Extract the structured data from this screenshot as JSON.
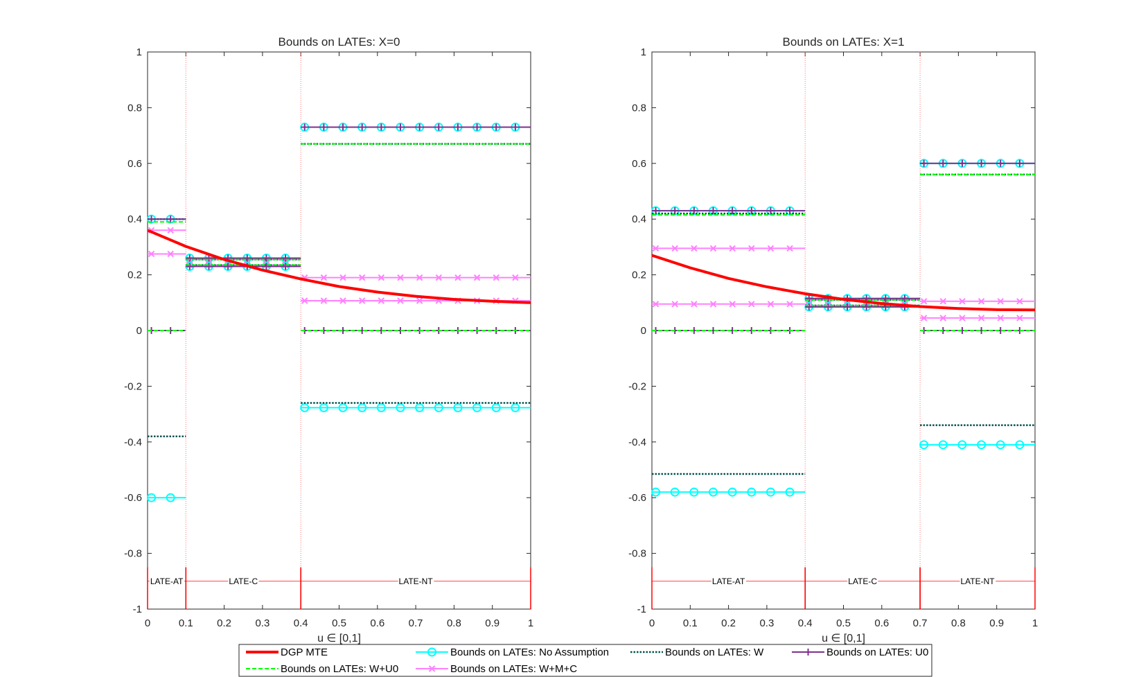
{
  "colors": {
    "dgp": "#ff0000",
    "noassump": "#00ffff",
    "w": "#005050",
    "u0": "#7e2f8e",
    "wu0": "#00ff00",
    "wmc": "#ff80ff",
    "vline": "#ff7070",
    "axis": "#262626",
    "plus": "#000000"
  },
  "legend": {
    "entries": [
      {
        "key": "dgp",
        "label": "DGP MTE"
      },
      {
        "key": "noassump",
        "label": "Bounds on LATEs: No Assumption"
      },
      {
        "key": "w",
        "label": "Bounds on LATEs: W"
      },
      {
        "key": "u0",
        "label": "Bounds on LATEs: U0"
      },
      {
        "key": "wu0",
        "label": "Bounds on LATEs: W+U0"
      },
      {
        "key": "wmc",
        "label": "Bounds on LATEs: W+M+C"
      }
    ]
  },
  "chart_data": [
    {
      "type": "line",
      "title": "Bounds on LATEs: X=0",
      "xlabel": "u ∈ [0,1]",
      "ylabel": "",
      "xlim": [
        0,
        1
      ],
      "ylim": [
        -1,
        1
      ],
      "xticks": [
        "0",
        "0.1",
        "0.2",
        "0.3",
        "0.4",
        "0.5",
        "0.6",
        "0.7",
        "0.8",
        "0.9",
        "1"
      ],
      "yticks": [
        "-1",
        "-0.8",
        "-0.6",
        "-0.4",
        "-0.2",
        "0",
        "0.2",
        "0.4",
        "0.6",
        "0.8",
        "1"
      ],
      "cutoffs": [
        0.1,
        0.4
      ],
      "regions": [
        {
          "label": "LATE-AT",
          "from": 0,
          "to": 0.1
        },
        {
          "label": "LATE-C",
          "from": 0.1,
          "to": 0.4
        },
        {
          "label": "LATE-NT",
          "from": 0.4,
          "to": 1
        }
      ],
      "dgp_mte": {
        "x": [
          0,
          0.1,
          0.2,
          0.3,
          0.4,
          0.5,
          0.6,
          0.7,
          0.8,
          0.9,
          1
        ],
        "y": [
          0.36,
          0.302,
          0.255,
          0.217,
          0.185,
          0.158,
          0.138,
          0.123,
          0.112,
          0.105,
          0.1
        ]
      },
      "bounds": {
        "no_assumption": [
          [
            0.4,
            -0.6
          ],
          [
            0.26,
            0.23
          ],
          [
            0.73,
            -0.277
          ]
        ],
        "w": [
          [
            0.4,
            -0.38
          ],
          [
            0.255,
            0.235
          ],
          [
            0.67,
            -0.26
          ]
        ],
        "u0": [
          [
            0.4,
            0
          ],
          [
            0.26,
            0.23
          ],
          [
            0.73,
            0
          ]
        ],
        "w_u0": [
          [
            0.39,
            0
          ],
          [
            0.255,
            0.235
          ],
          [
            0.67,
            0
          ]
        ],
        "w_m_c": [
          [
            0.36,
            0.275
          ],
          [
            0.255,
            0.235
          ],
          [
            0.19,
            0.107
          ]
        ]
      }
    },
    {
      "type": "line",
      "title": "Bounds on LATEs: X=1",
      "xlabel": "u ∈ [0,1]",
      "ylabel": "",
      "xlim": [
        0,
        1
      ],
      "ylim": [
        -1,
        1
      ],
      "xticks": [
        "0",
        "0.1",
        "0.2",
        "0.3",
        "0.4",
        "0.5",
        "0.6",
        "0.7",
        "0.8",
        "0.9",
        "1"
      ],
      "yticks": [
        "-1",
        "-0.8",
        "-0.6",
        "-0.4",
        "-0.2",
        "0",
        "0.2",
        "0.4",
        "0.6",
        "0.8",
        "1"
      ],
      "cutoffs": [
        0.4,
        0.7
      ],
      "regions": [
        {
          "label": "LATE-AT",
          "from": 0,
          "to": 0.4
        },
        {
          "label": "LATE-C",
          "from": 0.4,
          "to": 0.7
        },
        {
          "label": "LATE-NT",
          "from": 0.7,
          "to": 1
        }
      ],
      "dgp_mte": {
        "x": [
          0,
          0.1,
          0.2,
          0.3,
          0.4,
          0.5,
          0.6,
          0.7,
          0.8,
          0.9,
          1
        ],
        "y": [
          0.27,
          0.225,
          0.187,
          0.157,
          0.132,
          0.112,
          0.097,
          0.086,
          0.079,
          0.075,
          0.074
        ]
      },
      "bounds": {
        "no_assumption": [
          [
            0.43,
            -0.58
          ],
          [
            0.115,
            0.085
          ],
          [
            0.6,
            -0.41
          ]
        ],
        "w": [
          [
            0.42,
            -0.515
          ],
          [
            0.11,
            0.09
          ],
          [
            0.56,
            -0.34
          ]
        ],
        "u0": [
          [
            0.43,
            0
          ],
          [
            0.115,
            0.085
          ],
          [
            0.6,
            0
          ]
        ],
        "w_u0": [
          [
            0.415,
            0
          ],
          [
            0.11,
            0.09
          ],
          [
            0.56,
            0
          ]
        ],
        "w_m_c": [
          [
            0.295,
            0.095
          ],
          [
            0.11,
            0.09
          ],
          [
            0.105,
            0.045
          ]
        ]
      }
    }
  ]
}
